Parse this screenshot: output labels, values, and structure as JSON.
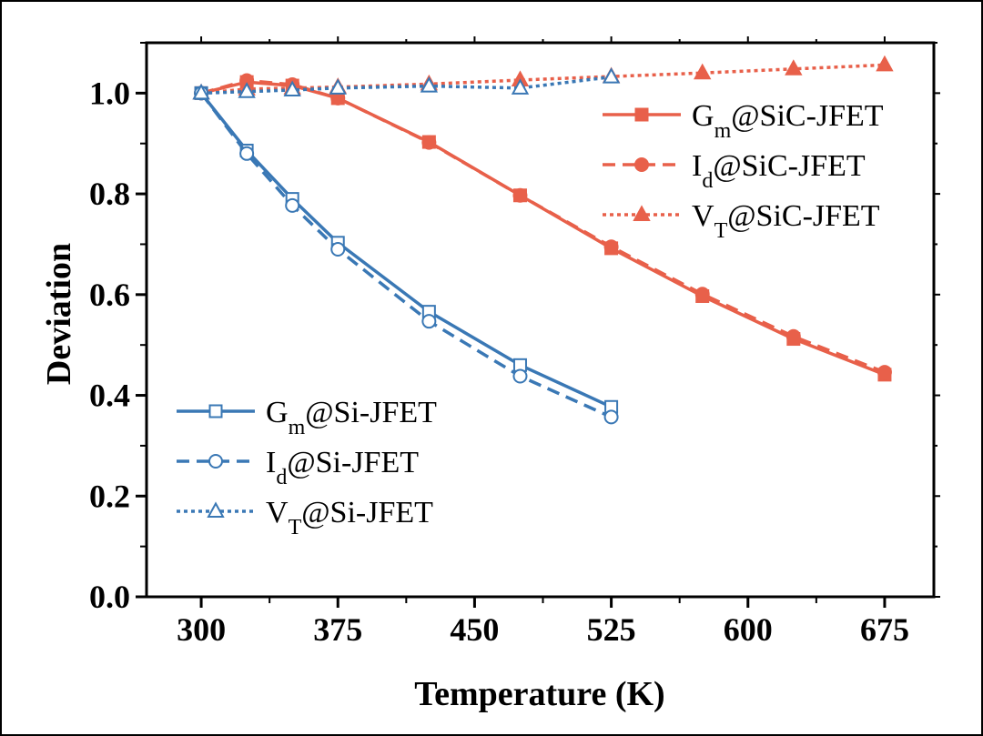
{
  "chart_data": {
    "type": "line",
    "title": "",
    "xlabel": "Temperature (K)",
    "ylabel": "Deviation",
    "xlim": [
      270,
      702
    ],
    "ylim": [
      0.0,
      1.1
    ],
    "xticks": [
      300,
      375,
      450,
      525,
      600,
      675
    ],
    "yticks": [
      0.0,
      0.2,
      0.4,
      0.6,
      0.8,
      1.0
    ],
    "xtick_labels": [
      "300",
      "375",
      "450",
      "525",
      "600",
      "675"
    ],
    "ytick_labels": [
      "0.0",
      "0.2",
      "0.4",
      "0.6",
      "0.8",
      "1.0"
    ],
    "grid": false,
    "legends": [
      {
        "placement": "upper-right",
        "series": [
          0,
          1,
          2
        ]
      },
      {
        "placement": "lower-left",
        "series": [
          3,
          4,
          5
        ]
      }
    ],
    "series": [
      {
        "name": "Gm@SiC-JFET",
        "main": "G",
        "sub": "m",
        "suffix": "@SiC-JFET",
        "color": "#e8604a",
        "linestyle": "solid",
        "marker": "square",
        "filled": true,
        "x": [
          300,
          325,
          350,
          375,
          425,
          475,
          525,
          575,
          625,
          675
        ],
        "y": [
          1.0,
          1.022,
          1.015,
          0.99,
          0.903,
          0.797,
          0.692,
          0.597,
          0.512,
          0.441
        ]
      },
      {
        "name": "Id@SiC-JFET",
        "main": "I",
        "sub": "d",
        "suffix": "@SiC-JFET",
        "color": "#e8604a",
        "linestyle": "dashed",
        "marker": "circle",
        "filled": true,
        "x": [
          300,
          325,
          350,
          375,
          425,
          475,
          525,
          575,
          625,
          675
        ],
        "y": [
          1.0,
          1.025,
          1.017,
          0.99,
          0.902,
          0.797,
          0.695,
          0.601,
          0.517,
          0.446
        ]
      },
      {
        "name": "VT@SiC-JFET",
        "main": "V",
        "sub": "T",
        "suffix": "@SiC-JFET",
        "color": "#e8604a",
        "linestyle": "dotted",
        "marker": "triangle",
        "filled": true,
        "x": [
          300,
          325,
          350,
          375,
          425,
          475,
          525,
          575,
          625,
          675
        ],
        "y": [
          1.0,
          1.008,
          1.01,
          1.012,
          1.018,
          1.026,
          1.033,
          1.04,
          1.048,
          1.056
        ]
      },
      {
        "name": "Gm@Si-JFET",
        "main": "G",
        "sub": "m",
        "suffix": "@Si-JFET",
        "color": "#3a78b5",
        "linestyle": "solid",
        "marker": "square",
        "filled": false,
        "x": [
          300,
          325,
          350,
          375,
          425,
          475,
          525
        ],
        "y": [
          1.0,
          0.886,
          0.79,
          0.703,
          0.566,
          0.46,
          0.377
        ]
      },
      {
        "name": "Id@Si-JFET",
        "main": "I",
        "sub": "d",
        "suffix": "@Si-JFET",
        "color": "#3a78b5",
        "linestyle": "dashed",
        "marker": "circle",
        "filled": false,
        "x": [
          300,
          325,
          350,
          375,
          425,
          475,
          525
        ],
        "y": [
          1.0,
          0.88,
          0.777,
          0.69,
          0.547,
          0.438,
          0.357
        ]
      },
      {
        "name": "VT@Si-JFET",
        "main": "V",
        "sub": "T",
        "suffix": "@Si-JFET",
        "color": "#3a78b5",
        "linestyle": "dotted",
        "marker": "triangle",
        "filled": false,
        "x": [
          300,
          325,
          350,
          375,
          425,
          475,
          525
        ],
        "y": [
          1.0,
          1.003,
          1.006,
          1.01,
          1.014,
          1.01,
          1.032
        ]
      }
    ]
  }
}
